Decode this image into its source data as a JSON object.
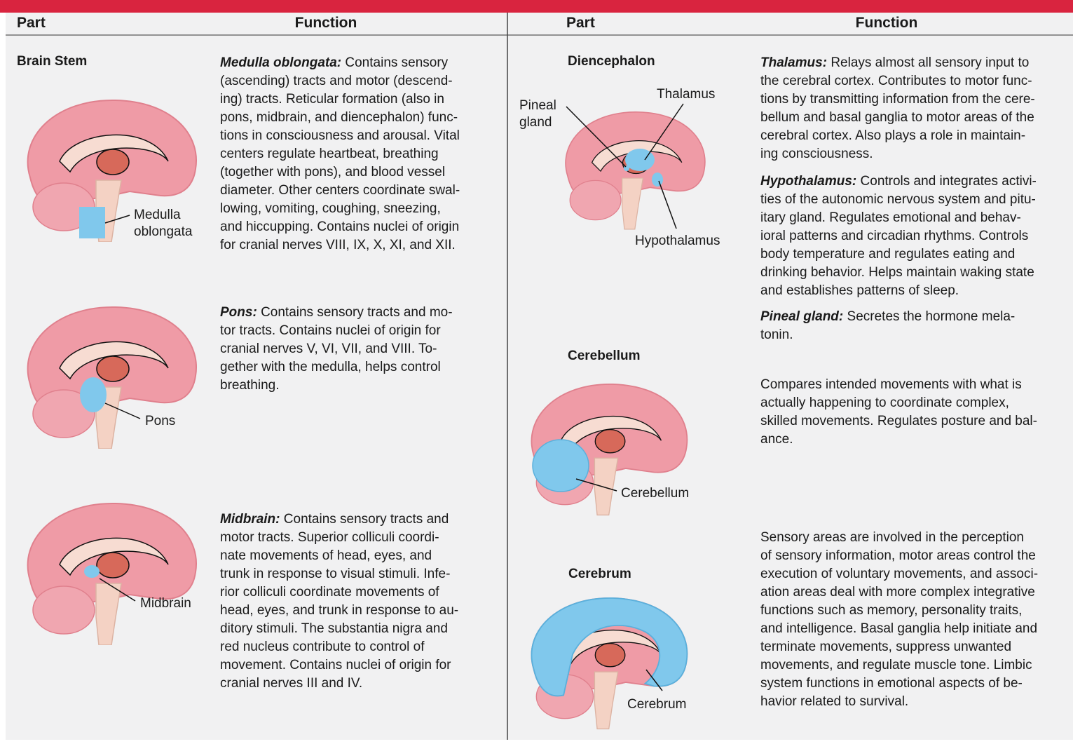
{
  "header": {
    "part_left": "Part",
    "function_left": "Function",
    "part_right": "Part",
    "function_right": "Function"
  },
  "left": {
    "group": "Brain Stem",
    "rows": [
      {
        "labels": [
          "Medulla",
          "oblongata"
        ],
        "functions": [
          {
            "term": "Medulla oblongata:",
            "lines": [
              "Contains sensory",
              "(ascending) tracts and motor (descend-",
              "ing) tracts. Reticular formation (also in",
              "pons, midbrain, and diencephalon) func-",
              "tions in consciousness and arousal. Vital",
              "centers regulate heartbeat, breathing",
              "(together with pons), and blood vessel",
              "diameter. Other centers coordinate swal-",
              "lowing, vomiting, coughing, sneezing,",
              "and hiccupping. Contains nuclei of origin",
              "for cranial nerves VIII, IX, X, XI, and XII."
            ]
          }
        ]
      },
      {
        "labels": [
          "Pons"
        ],
        "functions": [
          {
            "term": "Pons:",
            "lines": [
              "Contains sensory tracts and mo-",
              "tor tracts. Contains nuclei of origin for",
              "cranial nerves V, VI, VII, and VIII. To-",
              "gether with the medulla, helps control",
              "breathing."
            ]
          }
        ]
      },
      {
        "labels": [
          "Midbrain"
        ],
        "functions": [
          {
            "term": "Midbrain:",
            "lines": [
              "Contains sensory tracts and",
              "motor tracts. Superior colliculi coordi-",
              "nate movements of head, eyes, and",
              "trunk in response to visual stimuli. Infe-",
              "rior colliculi coordinate movements of",
              "head, eyes, and trunk in response to au-",
              "ditory stimuli. The substantia nigra and",
              "red nucleus contribute to control of",
              "movement. Contains nuclei of origin for",
              "cranial nerves III and IV."
            ]
          }
        ]
      }
    ]
  },
  "right": {
    "rows": [
      {
        "part": "Diencephalon",
        "labels": [
          "Pineal",
          "gland",
          "Thalamus",
          "Hypothalamus"
        ],
        "functions": [
          {
            "term": "Thalamus:",
            "lines": [
              "Relays almost all sensory input to",
              "the cerebral cortex. Contributes to motor func-",
              "tions by transmitting information from the cere-",
              "bellum and basal ganglia to motor areas of the",
              "cerebral cortex. Also plays a role in maintain-",
              "ing consciousness."
            ]
          },
          {
            "term": "Hypothalamus:",
            "lines": [
              "Controls and integrates activi-",
              "ties of the autonomic nervous system and pitu-",
              "itary gland. Regulates emotional and behav-",
              "ioral patterns and circadian rhythms. Controls",
              "body temperature and regulates eating and",
              "drinking behavior. Helps maintain waking state",
              "and establishes patterns of sleep."
            ]
          },
          {
            "term": "Pineal gland:",
            "lines": [
              "Secretes the hormone mela-",
              "tonin."
            ]
          }
        ]
      },
      {
        "part": "Cerebellum",
        "labels": [
          "Cerebellum"
        ],
        "functions": [
          {
            "lines": [
              "Compares intended movements with what is",
              "actually happening to coordinate complex,",
              "skilled movements. Regulates posture and bal-",
              "ance."
            ]
          }
        ]
      },
      {
        "part": "Cerebrum",
        "labels": [
          "Cerebrum"
        ],
        "functions": [
          {
            "lines": [
              "Sensory areas are involved in the perception",
              "of sensory information, motor areas control the",
              "execution of voluntary movements, and associ-",
              "ation areas deal with more complex integrative",
              "functions such as memory, personality traits,",
              "and intelligence. Basal ganglia help initiate and",
              "terminate movements, suppress unwanted",
              "movements, and regulate muscle tone. Limbic",
              "system functions in emotional aspects of be-",
              "havior related to survival."
            ]
          }
        ]
      }
    ]
  }
}
